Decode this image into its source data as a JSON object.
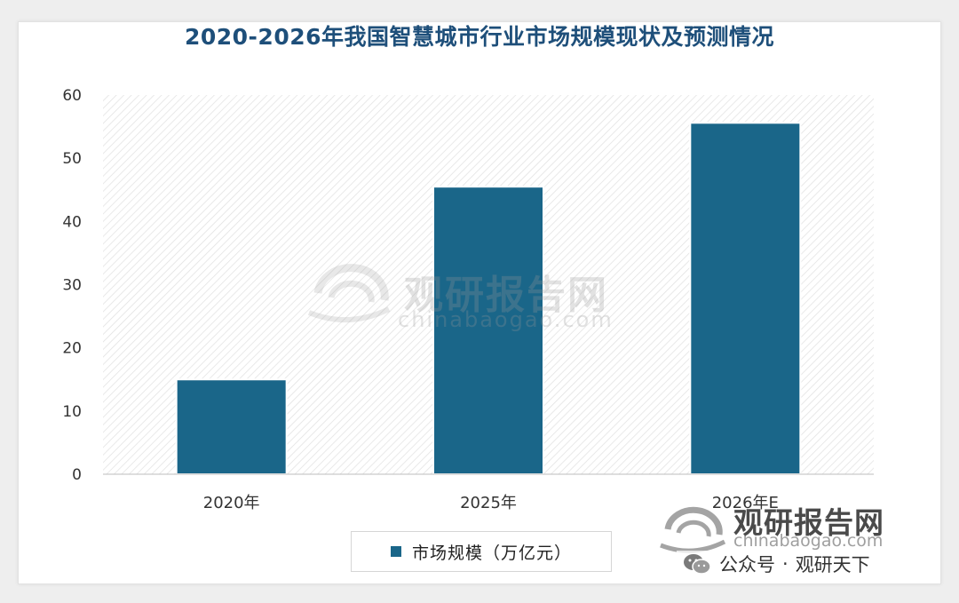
{
  "chart_data": {
    "type": "bar",
    "title": "2020-2026年我国智慧城市行业市场规模现状及预测情况",
    "categories": [
      "2020年",
      "2025年",
      "2026年E"
    ],
    "series": [
      {
        "name": "市场规模（万亿元）",
        "values": [
          15,
          45.5,
          55.6
        ]
      }
    ],
    "ylim": [
      0,
      60
    ],
    "yticks": [
      0,
      10,
      20,
      30,
      40,
      50,
      60
    ],
    "grid": false,
    "legend": "bottom",
    "colors": {
      "bar": "#1a6689",
      "title": "#1e4f7a",
      "hatch": "#dcdcdc"
    }
  },
  "watermark": {
    "name": "观研报告网",
    "domain": "chinabaogao.com"
  },
  "wechat_tag": {
    "prefix": "公众号",
    "separator": "·",
    "account": "观研天下"
  }
}
